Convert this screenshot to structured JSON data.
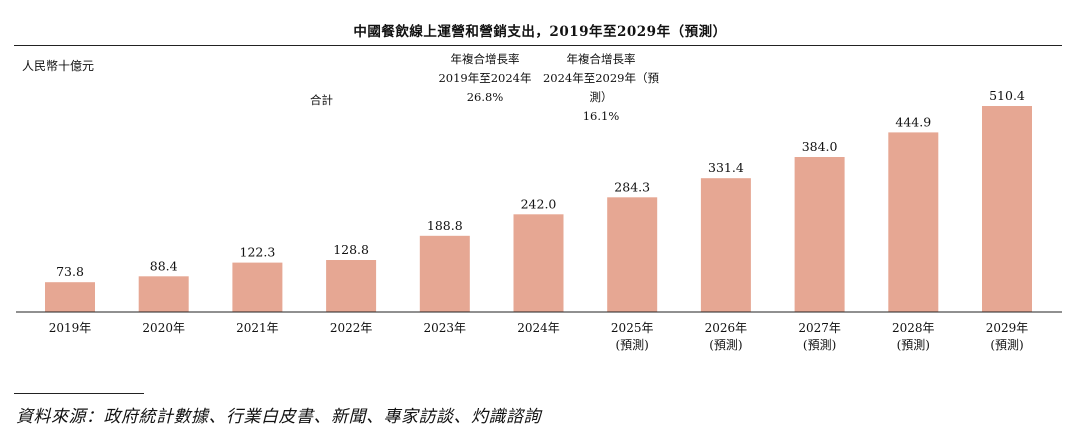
{
  "chart_data": {
    "type": "bar",
    "title": "中國餐飲線上運營和營銷支出，2019年至2029年（預測）",
    "unit_label": "人民幣十億元",
    "categories": [
      "2019年",
      "2020年",
      "2021年",
      "2022年",
      "2023年",
      "2024年",
      "2025年",
      "2026年",
      "2027年",
      "2028年",
      "2029年"
    ],
    "forecast_note": "(預測)",
    "forecast_flags": [
      false,
      false,
      false,
      false,
      false,
      false,
      true,
      true,
      true,
      true,
      true
    ],
    "values": [
      73.8,
      88.4,
      122.3,
      128.8,
      188.8,
      242.0,
      284.3,
      331.4,
      384.0,
      444.9,
      510.4
    ],
    "value_labels": [
      "73.8",
      "88.4",
      "122.3",
      "128.8",
      "188.8",
      "242.0",
      "284.3",
      "331.4",
      "384.0",
      "444.9",
      "510.4"
    ],
    "ylim": [
      0,
      510.4
    ],
    "bar_color": "#e6a793",
    "cagr": {
      "row_label": "合計",
      "columns": [
        {
          "heading": "年複合增長率",
          "period": "2019年至2024年",
          "value": "26.8%"
        },
        {
          "heading": "年複合增長率",
          "period": "2024年至2029年（預測）",
          "value": "16.1%"
        }
      ]
    }
  },
  "source": "資料來源：政府統計數據、行業白皮書、新聞、專家訪談、灼識諮詢"
}
